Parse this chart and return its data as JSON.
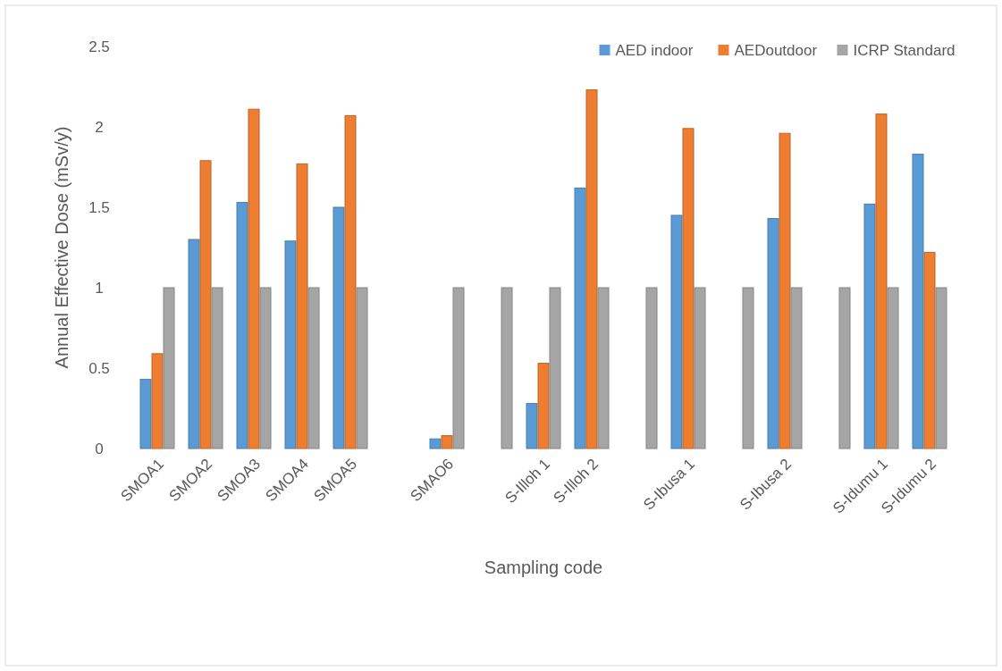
{
  "chart_data": {
    "type": "bar",
    "xlabel": "Sampling code",
    "ylabel": "Annual Effective Dose (mSv/y)",
    "categories": [
      "SMOA1",
      "SMOA2",
      "SMOA3",
      "SMOA4",
      "SMOA5",
      null,
      "SMAO6",
      null,
      "S-Illoh 1",
      "S-Illoh 2",
      null,
      "S-Ibusa 1",
      null,
      "S-Ibusa 2",
      null,
      "S-Idumu 1",
      "S-Idumu 2"
    ],
    "series": [
      {
        "name": "AED indoor",
        "color": "#5b9bd5",
        "values": [
          0.43,
          1.3,
          1.53,
          1.29,
          1.5,
          null,
          0.06,
          null,
          0.28,
          1.62,
          null,
          1.45,
          null,
          1.43,
          null,
          1.52,
          1.83
        ]
      },
      {
        "name": "AEDoutdoor",
        "color": "#ed7d31",
        "values": [
          0.59,
          1.79,
          2.11,
          1.77,
          2.07,
          null,
          0.08,
          null,
          0.53,
          2.23,
          null,
          1.99,
          null,
          1.96,
          null,
          2.08,
          1.22
        ]
      },
      {
        "name": "ICRP Standard",
        "color": "#a5a5a5",
        "values": [
          1,
          1,
          1,
          1,
          1,
          null,
          1,
          1,
          1,
          1,
          1,
          1,
          1,
          1,
          1,
          1,
          1
        ]
      }
    ],
    "ylim": [
      0,
      2.5
    ],
    "yticks": [
      0,
      0.5,
      1,
      1.5,
      2,
      2.5
    ],
    "grid": false,
    "legend": "top right"
  }
}
